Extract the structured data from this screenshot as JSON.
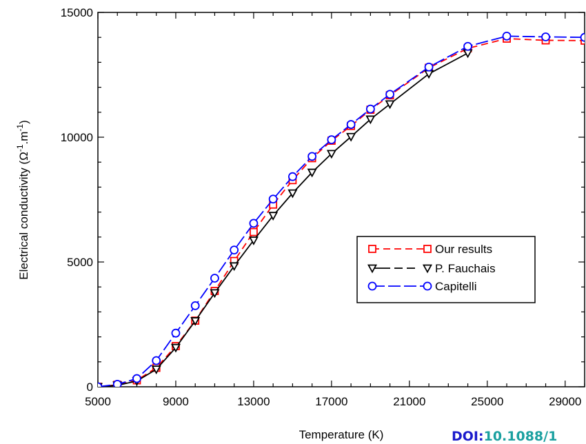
{
  "chart_data": {
    "type": "line",
    "xlabel": "Temperature (K)",
    "ylabel": "Electrical conductivity (Ω⁻¹.m⁻¹)",
    "xlim": [
      5000,
      30000
    ],
    "ylim": [
      0,
      15000
    ],
    "xticks": [
      5000,
      9000,
      13000,
      17000,
      21000,
      25000,
      29000
    ],
    "yticks": [
      0,
      5000,
      10000,
      15000
    ],
    "grid": false,
    "legend_position": "lower-right",
    "series": [
      {
        "name": "Our results",
        "color": "#ff0000",
        "marker": "square",
        "linestyle": "dashed",
        "points": [
          [
            5000,
            0
          ],
          [
            6000,
            80
          ],
          [
            7000,
            260
          ],
          [
            8000,
            760
          ],
          [
            9000,
            1630
          ],
          [
            10000,
            2650
          ],
          [
            11000,
            3840
          ],
          [
            12000,
            5040
          ],
          [
            13000,
            6200
          ],
          [
            14000,
            7300
          ],
          [
            15000,
            8280
          ],
          [
            16000,
            9160
          ],
          [
            17000,
            9860
          ],
          [
            18000,
            10450
          ],
          [
            19000,
            11100
          ],
          [
            20000,
            11680
          ],
          [
            22000,
            12780
          ],
          [
            24000,
            13560
          ],
          [
            26000,
            13950
          ],
          [
            28000,
            13880
          ],
          [
            30000,
            13870
          ]
        ]
      },
      {
        "name": "P. Fauchais",
        "color": "#000000",
        "marker": "triangle-down",
        "linestyle": "solid-dash",
        "points": [
          [
            5000,
            0
          ],
          [
            6000,
            60
          ],
          [
            7000,
            230
          ],
          [
            8000,
            700
          ],
          [
            9000,
            1570
          ],
          [
            10000,
            2640
          ],
          [
            11000,
            3760
          ],
          [
            12000,
            4840
          ],
          [
            13000,
            5870
          ],
          [
            14000,
            6860
          ],
          [
            15000,
            7760
          ],
          [
            16000,
            8590
          ],
          [
            17000,
            9340
          ],
          [
            18000,
            10020
          ],
          [
            19000,
            10720
          ],
          [
            20000,
            11330
          ],
          [
            22000,
            12540
          ],
          [
            24000,
            13370
          ]
        ]
      },
      {
        "name": "Capitelli",
        "color": "#0000ff",
        "marker": "circle",
        "linestyle": "long-dash",
        "points": [
          [
            5000,
            0
          ],
          [
            6000,
            100
          ],
          [
            7000,
            330
          ],
          [
            8000,
            1050
          ],
          [
            9000,
            2150
          ],
          [
            10000,
            3250
          ],
          [
            11000,
            4350
          ],
          [
            12000,
            5480
          ],
          [
            13000,
            6550
          ],
          [
            14000,
            7520
          ],
          [
            15000,
            8420
          ],
          [
            16000,
            9230
          ],
          [
            17000,
            9900
          ],
          [
            18000,
            10510
          ],
          [
            19000,
            11130
          ],
          [
            20000,
            11720
          ],
          [
            22000,
            12810
          ],
          [
            24000,
            13640
          ],
          [
            26000,
            14050
          ],
          [
            28000,
            14020
          ],
          [
            30000,
            14000
          ]
        ]
      }
    ]
  },
  "doi": {
    "prefix": "DOI:",
    "value": "10.1088/1"
  }
}
